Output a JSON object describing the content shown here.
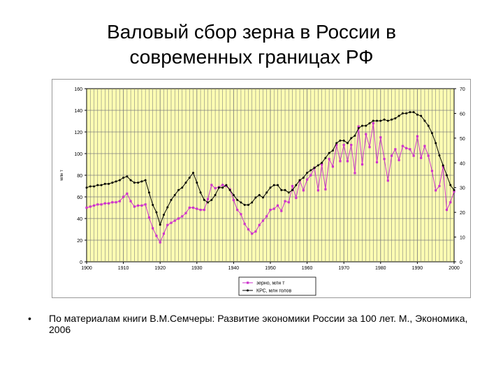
{
  "slide": {
    "title_line1": "Валовый сбор зерна в России в",
    "title_line2": "современных границах РФ",
    "bullet": "•",
    "caption": "По материалам книги В.М.Семчеры: Развитие экономики России за 100 лет. М., Экономика, 2006"
  },
  "colors": {
    "plot_background": "#FFFFB3",
    "grid": "#7F7F7F",
    "grain_series": "#CC33CC",
    "cattle_series": "#000000"
  },
  "chart_data": {
    "type": "line",
    "ylabel": "млн т",
    "y2label": "млн голов",
    "xlim": [
      1900,
      2000
    ],
    "ylim": [
      0,
      160
    ],
    "y2lim": [
      0,
      70
    ],
    "x_ticks": [
      1900,
      1910,
      1920,
      1930,
      1940,
      1950,
      1960,
      1970,
      1980,
      1990,
      2000
    ],
    "y_ticks": [
      0,
      20,
      40,
      60,
      80,
      100,
      120,
      140,
      160
    ],
    "y2_ticks": [
      0,
      10,
      20,
      30,
      40,
      50,
      60,
      70
    ],
    "grid": "vertical yearly gridlines, horizontal at y ticks",
    "legend_position": "bottom-right",
    "series": [
      {
        "name": "зерно, млн т",
        "axis": "left",
        "marker": "square",
        "x": [
          1900,
          1901,
          1902,
          1903,
          1904,
          1905,
          1906,
          1907,
          1908,
          1909,
          1910,
          1911,
          1912,
          1913,
          1914,
          1915,
          1916,
          1917,
          1918,
          1919,
          1920,
          1921,
          1922,
          1923,
          1924,
          1925,
          1926,
          1927,
          1928,
          1929,
          1930,
          1931,
          1932,
          1933,
          1934,
          1935,
          1936,
          1937,
          1938,
          1939,
          1940,
          1941,
          1942,
          1943,
          1944,
          1945,
          1946,
          1947,
          1948,
          1949,
          1950,
          1951,
          1952,
          1953,
          1954,
          1955,
          1956,
          1957,
          1958,
          1959,
          1960,
          1961,
          1962,
          1963,
          1964,
          1965,
          1966,
          1967,
          1968,
          1969,
          1970,
          1971,
          1972,
          1973,
          1974,
          1975,
          1976,
          1977,
          1978,
          1979,
          1980,
          1981,
          1982,
          1983,
          1984,
          1985,
          1986,
          1987,
          1988,
          1989,
          1990,
          1991,
          1992,
          1993,
          1994,
          1995,
          1996,
          1997,
          1998,
          1999,
          2000
        ],
        "values": [
          50,
          51,
          52,
          53,
          53,
          54,
          54,
          55,
          55,
          56,
          60,
          63,
          56,
          51,
          52,
          52,
          53,
          41,
          31,
          24,
          18,
          26,
          34,
          36,
          38,
          40,
          42,
          45,
          50,
          50,
          49,
          48,
          48,
          58,
          71,
          68,
          69,
          71,
          70,
          67,
          57,
          48,
          44,
          35,
          30,
          26,
          28,
          34,
          38,
          42,
          48,
          49,
          52,
          47,
          56,
          55,
          70,
          59,
          75,
          66,
          76,
          80,
          87,
          66,
          90,
          67,
          95,
          88,
          108,
          93,
          108,
          93,
          108,
          82,
          125,
          90,
          118,
          106,
          128,
          92,
          115,
          95,
          75,
          98,
          104,
          94,
          107,
          105,
          104,
          98,
          116,
          96,
          107,
          98,
          84,
          66,
          70,
          88,
          48,
          55,
          65
        ]
      },
      {
        "name": "КРС, млн голов",
        "axis": "right",
        "marker": "circle",
        "x": [
          1900,
          1901,
          1902,
          1903,
          1904,
          1905,
          1906,
          1907,
          1908,
          1909,
          1910,
          1911,
          1912,
          1913,
          1914,
          1915,
          1916,
          1917,
          1918,
          1919,
          1920,
          1921,
          1922,
          1923,
          1924,
          1925,
          1926,
          1927,
          1928,
          1929,
          1930,
          1931,
          1932,
          1933,
          1934,
          1935,
          1936,
          1937,
          1938,
          1939,
          1940,
          1941,
          1942,
          1943,
          1944,
          1945,
          1946,
          1947,
          1948,
          1949,
          1950,
          1951,
          1952,
          1953,
          1954,
          1955,
          1956,
          1957,
          1958,
          1959,
          1960,
          1961,
          1962,
          1963,
          1964,
          1965,
          1966,
          1967,
          1968,
          1969,
          1970,
          1971,
          1972,
          1973,
          1974,
          1975,
          1976,
          1977,
          1978,
          1979,
          1980,
          1981,
          1982,
          1983,
          1984,
          1985,
          1986,
          1987,
          1988,
          1989,
          1990,
          1991,
          1992,
          1993,
          1994,
          1995,
          1996,
          1997,
          1998,
          1999,
          2000
        ],
        "values": [
          30,
          30.5,
          30.5,
          31,
          31,
          31.5,
          31.5,
          32,
          32.5,
          33,
          34,
          34.5,
          33,
          32,
          32,
          32.5,
          33,
          28,
          23,
          20,
          15,
          19,
          22,
          25,
          27,
          29,
          30,
          32,
          34,
          36,
          32,
          28,
          25,
          24,
          25,
          27,
          30,
          30,
          31,
          29,
          27,
          25,
          24,
          23,
          23,
          24,
          26,
          27,
          26,
          28,
          30,
          31,
          31,
          29,
          29,
          28,
          29,
          31,
          33,
          34,
          36,
          37,
          38,
          39,
          40,
          42,
          44,
          45,
          48,
          49,
          49,
          48,
          50,
          51,
          54,
          55,
          55,
          56,
          57,
          57,
          57,
          57.5,
          57,
          57.5,
          58,
          59,
          60,
          60,
          60.5,
          60.5,
          59.5,
          59,
          57,
          55,
          52,
          48,
          43,
          39,
          35,
          31,
          29
        ]
      }
    ]
  }
}
